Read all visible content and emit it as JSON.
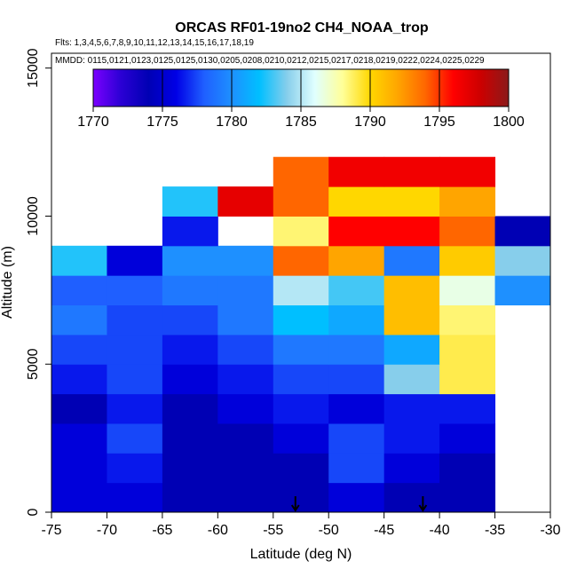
{
  "chart_data": {
    "type": "heatmap",
    "title": "ORCAS RF01-19no2 CH4_NOAA_trop",
    "flights_note": "Flts: 1,3,4,5,6,7,8,9,10,11,12,13,14,15,16,17,18,19",
    "dates_note": "MMDD: 0115,0121,0123,0125,0125,0130,0205,0208,0210,0212,0215,0217,0218,0219,0222,0224,0225,0229",
    "xlabel": "Latitude (deg N)",
    "ylabel": "Altitude (m)",
    "xlim": [
      -75,
      -30
    ],
    "ylim": [
      0,
      15500
    ],
    "xticks": [
      -75,
      -70,
      -65,
      -60,
      -55,
      -50,
      -45,
      -40,
      -35,
      -30
    ],
    "yticks": [
      0,
      5000,
      10000,
      15000
    ],
    "colorbar": {
      "min": 1770,
      "max": 1800,
      "ticks": [
        1770,
        1775,
        1780,
        1785,
        1790,
        1795,
        1800
      ],
      "stops": [
        "#7b00ff",
        "#2b00d4",
        "#0000b4",
        "#0000e6",
        "#1f5fff",
        "#1e90ff",
        "#00bfff",
        "#87ceeb",
        "#e0ffff",
        "#ffff99",
        "#ffd700",
        "#ffa500",
        "#ff6600",
        "#ff0000",
        "#cc0000",
        "#8b1a1a"
      ]
    },
    "lat_bin_width": 5,
    "alt_bin_height": 1000,
    "cells": [
      [
        -72.5,
        500,
        1775.5
      ],
      [
        -67.5,
        500,
        1775.5
      ],
      [
        -62.5,
        500,
        1774.0
      ],
      [
        -57.5,
        500,
        1774.0
      ],
      [
        -52.5,
        500,
        1774.0
      ],
      [
        -47.5,
        500,
        1775.5
      ],
      [
        -42.5,
        500,
        1774.0
      ],
      [
        -37.5,
        500,
        1774.0
      ],
      [
        -72.5,
        1500,
        1775.5
      ],
      [
        -67.5,
        1500,
        1776.5
      ],
      [
        -62.5,
        1500,
        1774.0
      ],
      [
        -57.5,
        1500,
        1774.0
      ],
      [
        -52.5,
        1500,
        1774.0
      ],
      [
        -47.5,
        1500,
        1777.5
      ],
      [
        -42.5,
        1500,
        1775.5
      ],
      [
        -37.5,
        1500,
        1774.0
      ],
      [
        -72.5,
        2500,
        1775.5
      ],
      [
        -67.5,
        2500,
        1777.5
      ],
      [
        -62.5,
        2500,
        1774.0
      ],
      [
        -57.5,
        2500,
        1774.0
      ],
      [
        -52.5,
        2500,
        1775.5
      ],
      [
        -47.5,
        2500,
        1777.5
      ],
      [
        -42.5,
        2500,
        1776.5
      ],
      [
        -37.5,
        2500,
        1775.5
      ],
      [
        -72.5,
        3500,
        1774.0
      ],
      [
        -67.5,
        3500,
        1776.5
      ],
      [
        -62.5,
        3500,
        1774.0
      ],
      [
        -57.5,
        3500,
        1775.5
      ],
      [
        -52.5,
        3500,
        1776.5
      ],
      [
        -47.5,
        3500,
        1775.5
      ],
      [
        -42.5,
        3500,
        1776.5
      ],
      [
        -37.5,
        3500,
        1776.5
      ],
      [
        -72.5,
        4500,
        1776.5
      ],
      [
        -67.5,
        4500,
        1777.5
      ],
      [
        -62.5,
        4500,
        1775.5
      ],
      [
        -57.5,
        4500,
        1776.5
      ],
      [
        -52.5,
        4500,
        1777.5
      ],
      [
        -47.5,
        4500,
        1777.5
      ],
      [
        -42.5,
        4500,
        1784.0
      ],
      [
        -37.5,
        4500,
        1789.0
      ],
      [
        -72.5,
        5500,
        1777.5
      ],
      [
        -67.5,
        5500,
        1777.5
      ],
      [
        -62.5,
        5500,
        1776.5
      ],
      [
        -57.5,
        5500,
        1777.5
      ],
      [
        -52.5,
        5500,
        1779.0
      ],
      [
        -47.5,
        5500,
        1779.0
      ],
      [
        -42.5,
        5500,
        1781.0
      ],
      [
        -37.5,
        5500,
        1789.0
      ],
      [
        -72.5,
        6500,
        1779.0
      ],
      [
        -67.5,
        6500,
        1777.5
      ],
      [
        -62.5,
        6500,
        1777.5
      ],
      [
        -57.5,
        6500,
        1779.0
      ],
      [
        -52.5,
        6500,
        1782.0
      ],
      [
        -47.5,
        6500,
        1781.0
      ],
      [
        -42.5,
        6500,
        1791.0
      ],
      [
        -37.5,
        6500,
        1788.5
      ],
      [
        -72.5,
        7500,
        1778.0
      ],
      [
        -67.5,
        7500,
        1778.0
      ],
      [
        -62.5,
        7500,
        1779.0
      ],
      [
        -57.5,
        7500,
        1779.0
      ],
      [
        -52.5,
        7500,
        1785.0
      ],
      [
        -47.5,
        7500,
        1783.0
      ],
      [
        -42.5,
        7500,
        1791.0
      ],
      [
        -37.5,
        7500,
        1786.5
      ],
      [
        -32.5,
        7500,
        1780.0
      ],
      [
        -72.5,
        8500,
        1782.5
      ],
      [
        -67.5,
        8500,
        1775.5
      ],
      [
        -62.5,
        8500,
        1780.0
      ],
      [
        -57.5,
        8500,
        1780.0
      ],
      [
        -52.5,
        8500,
        1794.0
      ],
      [
        -47.5,
        8500,
        1792.0
      ],
      [
        -42.5,
        8500,
        1779.0
      ],
      [
        -37.5,
        8500,
        1790.5
      ],
      [
        -32.5,
        8500,
        1784.0
      ],
      [
        -62.5,
        9500,
        1776.5
      ],
      [
        -52.5,
        9500,
        1788.5
      ],
      [
        -47.5,
        9500,
        1796.0
      ],
      [
        -42.5,
        9500,
        1796.0
      ],
      [
        -37.5,
        9500,
        1794.0
      ],
      [
        -32.5,
        9500,
        1774.0
      ],
      [
        -62.5,
        10500,
        1782.5
      ],
      [
        -57.5,
        10500,
        1797.0
      ],
      [
        -52.5,
        10500,
        1794.0
      ],
      [
        -47.5,
        10500,
        1790.0
      ],
      [
        -42.5,
        10500,
        1790.0
      ],
      [
        -37.5,
        10500,
        1792.0
      ],
      [
        -52.5,
        11500,
        1794.0
      ],
      [
        -47.5,
        11500,
        1796.5
      ],
      [
        -42.5,
        11500,
        1796.5
      ],
      [
        -37.5,
        11500,
        1796.5
      ]
    ],
    "markers": [
      {
        "lat": -53,
        "alt": 0
      },
      {
        "lat": -41.5,
        "alt": 0
      }
    ]
  }
}
